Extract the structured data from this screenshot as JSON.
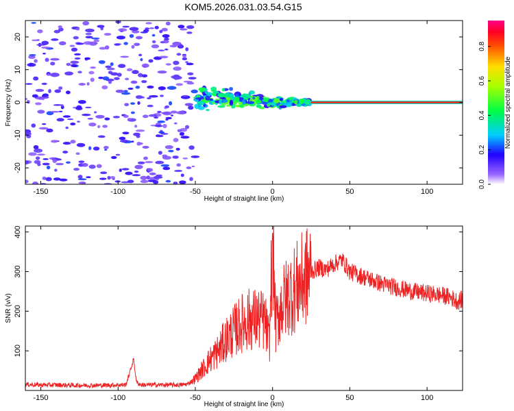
{
  "figure_title": "KOM5.2026.031.03.54.G15",
  "chart_data": [
    {
      "type": "heatmap",
      "title": "KOM5.2026.031.03.54.G15",
      "xlabel": "Height of straight line (km)",
      "ylabel": "Frequency (Hz)",
      "xlim": [
        -160,
        123
      ],
      "ylim": [
        -25,
        25
      ],
      "x_ticks": [
        -150,
        -100,
        -50,
        0,
        50,
        100
      ],
      "y_ticks": [
        -20,
        -10,
        0,
        10,
        20
      ],
      "colorbar": {
        "label": "Normalized spectral amplitude",
        "range": [
          0,
          0.95
        ],
        "ticks": [
          0.0,
          0.2,
          0.4,
          0.6,
          0.8
        ],
        "colormap": [
          "#ffffff",
          "#7f00ff",
          "#0000ff",
          "#00ffff",
          "#00ff00",
          "#ffff00",
          "#ff8000",
          "#ff0000",
          "#ff0080"
        ]
      },
      "features": [
        {
          "name": "scattered noise",
          "x_range": [
            -160,
            -50
          ],
          "freq_range": [
            -25,
            25
          ],
          "amplitude": 0.1
        },
        {
          "name": "onset band",
          "x_range": [
            -50,
            25
          ],
          "freq_center": 0,
          "freq_spread": 5,
          "amplitude": 0.3
        },
        {
          "name": "carrier line",
          "x_range": [
            25,
            123
          ],
          "freq_center": 0,
          "amplitude": 0.9
        }
      ]
    },
    {
      "type": "line",
      "xlabel": "Height of straight line (km)",
      "ylabel": "SNR (v/v)",
      "xlim": [
        -160,
        123
      ],
      "ylim": [
        0,
        415
      ],
      "x_ticks": [
        -150,
        -100,
        -50,
        0,
        50,
        100
      ],
      "y_ticks": [
        100,
        200,
        300,
        400
      ],
      "color": "#ee2222",
      "series": [
        {
          "name": "SNR",
          "x": [
            -160,
            -150,
            -140,
            -130,
            -120,
            -110,
            -100,
            -95,
            -92,
            -90,
            -88,
            -85,
            -80,
            -70,
            -60,
            -55,
            -50,
            -45,
            -40,
            -35,
            -30,
            -25,
            -20,
            -15,
            -10,
            -5,
            -2,
            0,
            2,
            5,
            10,
            15,
            20,
            25,
            30,
            35,
            40,
            45,
            50,
            60,
            70,
            80,
            90,
            100,
            110,
            115,
            120,
            123
          ],
          "y": [
            15,
            14,
            14,
            13,
            13,
            13,
            14,
            14,
            50,
            80,
            20,
            14,
            14,
            14,
            14,
            16,
            30,
            55,
            80,
            100,
            130,
            150,
            170,
            180,
            180,
            175,
            120,
            410,
            160,
            210,
            240,
            260,
            280,
            300,
            310,
            305,
            320,
            330,
            300,
            285,
            270,
            260,
            250,
            245,
            240,
            235,
            225,
            230
          ]
        }
      ]
    }
  ]
}
